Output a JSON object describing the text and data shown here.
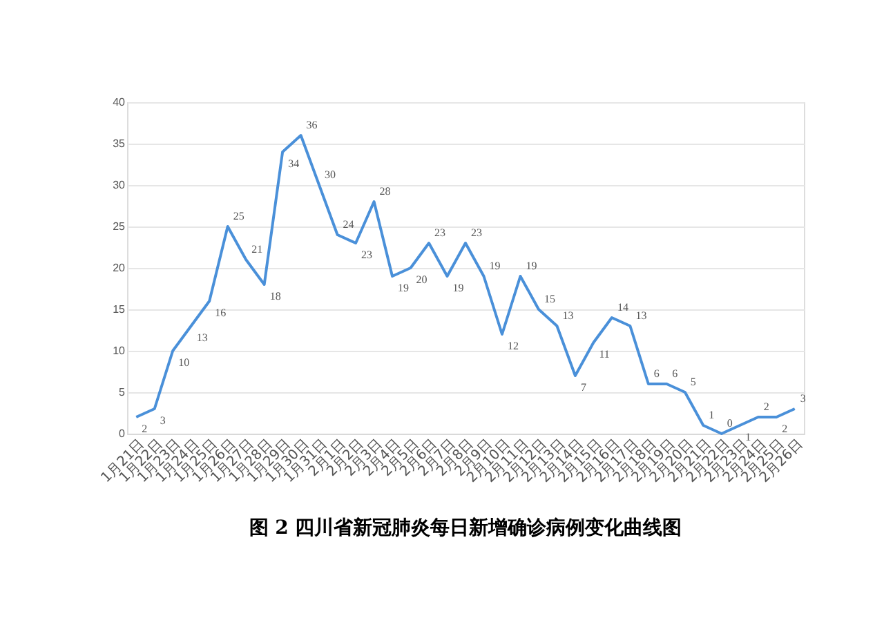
{
  "chart_data": {
    "type": "line",
    "title": "图 2  四川省新冠肺炎每日新增确诊病例变化曲线图",
    "categories": [
      "1月21日",
      "1月22日",
      "1月23日",
      "1月24日",
      "1月25日",
      "1月26日",
      "1月27日",
      "1月28日",
      "1月29日",
      "1月30日",
      "1月31日",
      "2月1日",
      "2月2日",
      "2月3日",
      "2月4日",
      "2月5日",
      "2月6日",
      "2月7日",
      "2月8日",
      "2月9日",
      "2月10日",
      "2月11日",
      "2月12日",
      "2月13日",
      "2月14日",
      "2月15日",
      "2月16日",
      "2月17日",
      "2月18日",
      "2月19日",
      "2月20日",
      "2月21日",
      "2月22日",
      "2月23日",
      "2月24日",
      "2月25日",
      "2月26日"
    ],
    "series": [
      {
        "color": "#4a90d9",
        "values": [
          2,
          3,
          10,
          13,
          16,
          25,
          21,
          18,
          34,
          36,
          30,
          24,
          23,
          28,
          19,
          20,
          23,
          19,
          23,
          19,
          12,
          19,
          15,
          13,
          7,
          11,
          14,
          13,
          6,
          6,
          5,
          1,
          0,
          1,
          2,
          2,
          3
        ]
      }
    ],
    "ylim": [
      0,
      40
    ],
    "yticks": [
      0,
      5,
      10,
      15,
      20,
      25,
      30,
      35,
      40
    ],
    "grid": "y",
    "data_labels": true,
    "marker": "none",
    "line_style": "solid",
    "legend": false
  }
}
